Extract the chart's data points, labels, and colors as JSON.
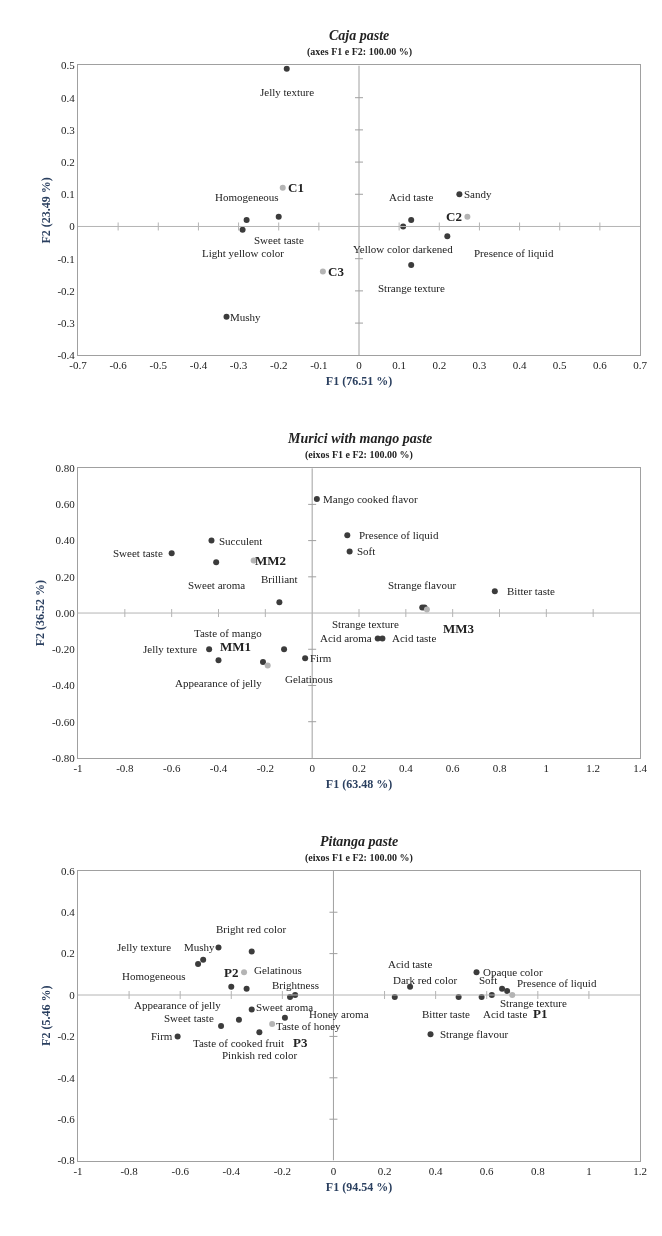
{
  "chart_data": [
    {
      "type": "scatter",
      "title": "Caja paste",
      "subtitle": "(axes F1 e F2: 100.00 %)",
      "xlabel": "F1 (76.51 %)",
      "ylabel": "F2 (23.49 %)",
      "marker": "circle",
      "grid": false,
      "xlim": [
        -0.7,
        0.7
      ],
      "ylim": [
        -0.4,
        0.5
      ],
      "ref_lines": [
        {
          "axis": "x",
          "value": 0,
          "color": "#a0a0a0"
        },
        {
          "axis": "y",
          "value": 0,
          "color": "#b4b4b4"
        }
      ],
      "xticks": [
        -0.7,
        -0.6,
        -0.5,
        -0.4,
        -0.3,
        -0.2,
        -0.1,
        0,
        0.1,
        0.2,
        0.3,
        0.4,
        0.5,
        0.6,
        0.7
      ],
      "yticks": [
        -0.4,
        -0.3,
        -0.2,
        -0.1,
        0,
        0.1,
        0.2,
        0.3,
        0.4,
        0.5
      ],
      "series": [
        {
          "color": "#3c3c3c",
          "x": [
            -0.18,
            -0.2,
            -0.28,
            -0.29,
            -0.33,
            0.13,
            0.11,
            0.25,
            0.22,
            0.13
          ],
          "values": [
            0.49,
            0.03,
            0.02,
            -0.01,
            -0.28,
            0.02,
            0.0,
            0.1,
            -0.03,
            -0.12
          ]
        },
        {
          "color": "#b4b4b4",
          "x": [
            -0.19,
            0.27,
            -0.09
          ],
          "values": [
            0.12,
            0.03,
            -0.14
          ]
        }
      ],
      "annotations": [
        {
          "text": "Jelly texture",
          "x": -0.18,
          "y": 0.49
        },
        {
          "text": "Sweet taste",
          "x": -0.2,
          "y": 0.03
        },
        {
          "text": "Homogeneous",
          "x": -0.28,
          "y": 0.02
        },
        {
          "text": "Light yellow color",
          "x": -0.29,
          "y": -0.01
        },
        {
          "text": "Mushy",
          "x": -0.33,
          "y": -0.28
        },
        {
          "text": "Acid taste",
          "x": 0.13,
          "y": 0.02
        },
        {
          "text": "Yellow color darkened",
          "x": 0.11,
          "y": 0.0
        },
        {
          "text": "Sandy",
          "x": 0.25,
          "y": 0.1
        },
        {
          "text": "Presence of liquid",
          "x": 0.22,
          "y": -0.03
        },
        {
          "text": "Strange texture",
          "x": 0.13,
          "y": -0.12
        },
        {
          "text": "C1",
          "x": -0.19,
          "y": 0.12
        },
        {
          "text": "C2",
          "x": 0.27,
          "y": 0.03
        },
        {
          "text": "C3",
          "x": -0.09,
          "y": -0.14
        }
      ]
    },
    {
      "type": "scatter",
      "title": "Murici with mango paste",
      "subtitle": "(eixos F1 e F2: 100.00 %)",
      "xlabel": "F1 (63.48 %)",
      "ylabel": "F2 (36.52 %)",
      "marker": "circle",
      "grid": false,
      "xlim": [
        -1,
        1.4
      ],
      "ylim": [
        -0.8,
        0.8
      ],
      "ref_lines": [
        {
          "axis": "x",
          "value": 0,
          "color": "#a0a0a0"
        },
        {
          "axis": "y",
          "value": 0,
          "color": "#b4b4b4"
        }
      ],
      "xticks": [
        -1,
        -0.8,
        -0.6,
        -0.4,
        -0.2,
        0,
        0.2,
        0.4,
        0.6,
        0.8,
        1,
        1.2,
        1.4
      ],
      "yticks": [
        {
          "value": -0.8,
          "label": "-0.80"
        },
        {
          "value": -0.6,
          "label": "-0.60"
        },
        {
          "value": -0.4,
          "label": "-0.40"
        },
        {
          "value": -0.2,
          "label": "-0.20"
        },
        {
          "value": 0,
          "label": "0.00"
        },
        {
          "value": 0.2,
          "label": "0.20"
        },
        {
          "value": 0.4,
          "label": "0.40"
        },
        {
          "value": 0.6,
          "label": "0.60"
        },
        {
          "value": 0.8,
          "label": "0.80"
        }
      ],
      "series": [
        {
          "color": "#3c3c3c",
          "x": [
            0.02,
            0.15,
            0.16,
            -0.43,
            -0.6,
            -0.41,
            -0.14,
            0.78,
            0.47,
            0.48,
            0.3,
            0.28,
            -0.44,
            -0.4,
            -0.12,
            -0.21,
            -0.03
          ],
          "values": [
            0.63,
            0.43,
            0.34,
            0.4,
            0.33,
            0.28,
            0.06,
            0.12,
            0.03,
            0.03,
            -0.14,
            -0.14,
            -0.2,
            -0.26,
            -0.2,
            -0.27,
            -0.25
          ]
        },
        {
          "color": "#b4b4b4",
          "x": [
            -0.19,
            -0.25,
            0.49
          ],
          "values": [
            -0.29,
            0.29,
            0.02
          ]
        }
      ],
      "annotations": [
        {
          "text": "Mango cooked flavor",
          "x": 0.02,
          "y": 0.63
        },
        {
          "text": "Presence of liquid",
          "x": 0.15,
          "y": 0.43
        },
        {
          "text": "Soft",
          "x": 0.16,
          "y": 0.34
        },
        {
          "text": "Succulent",
          "x": -0.43,
          "y": 0.4
        },
        {
          "text": "Sweet taste",
          "x": -0.6,
          "y": 0.33
        },
        {
          "text": "Sweet aroma",
          "x": -0.41,
          "y": 0.28
        },
        {
          "text": "Brilliant",
          "x": -0.14,
          "y": 0.06
        },
        {
          "text": "Bitter taste",
          "x": 0.78,
          "y": 0.12
        },
        {
          "text": "Strange flavour",
          "x": 0.47,
          "y": 0.03
        },
        {
          "text": "Strange texture",
          "x": 0.48,
          "y": 0.03
        },
        {
          "text": "Acid taste",
          "x": 0.3,
          "y": -0.14
        },
        {
          "text": "Acid aroma",
          "x": 0.28,
          "y": -0.14
        },
        {
          "text": "Jelly texture",
          "x": -0.44,
          "y": -0.2
        },
        {
          "text": "Appearance of jelly",
          "x": -0.4,
          "y": -0.26
        },
        {
          "text": "Taste of mango",
          "x": -0.12,
          "y": -0.2
        },
        {
          "text": "Gelatinous",
          "x": -0.21,
          "y": -0.27
        },
        {
          "text": "Firm",
          "x": -0.03,
          "y": -0.25
        },
        {
          "text": "MM1",
          "x": -0.19,
          "y": -0.29
        },
        {
          "text": "MM2",
          "x": -0.25,
          "y": 0.29
        },
        {
          "text": "MM3",
          "x": 0.49,
          "y": 0.02
        }
      ]
    },
    {
      "type": "scatter",
      "title": "Pitanga paste",
      "subtitle": "(eixos F1 e F2: 100.00 %)",
      "xlabel": "F1 (94.54 %)",
      "ylabel": "F2 (5.46 %)",
      "marker": "circle",
      "grid": false,
      "xlim": [
        -1,
        1.2
      ],
      "ylim": [
        -0.8,
        0.6
      ],
      "ref_lines": [
        {
          "axis": "x",
          "value": 0,
          "color": "#a0a0a0"
        },
        {
          "axis": "y",
          "value": 0,
          "color": "#b4b4b4"
        }
      ],
      "xticks": [
        -1,
        -0.8,
        -0.6,
        -0.4,
        -0.2,
        0,
        0.2,
        0.4,
        0.6,
        0.8,
        1,
        1.2
      ],
      "yticks": [
        -0.8,
        -0.6,
        -0.4,
        -0.2,
        0,
        0.2,
        0.4,
        0.6
      ],
      "series": [
        {
          "color": "#3c3c3c",
          "x": [
            -0.45,
            -0.32,
            -0.51,
            -0.53,
            -0.4,
            -0.34,
            -0.15,
            -0.17,
            -0.32,
            -0.37,
            -0.44,
            -0.61,
            -0.29,
            -0.19,
            0.3,
            0.24,
            0.56,
            0.49,
            0.58,
            0.62,
            0.66,
            0.68,
            0.38
          ],
          "values": [
            0.23,
            0.21,
            0.17,
            0.15,
            0.04,
            0.03,
            0.0,
            -0.01,
            -0.07,
            -0.12,
            -0.15,
            -0.2,
            -0.18,
            -0.11,
            0.04,
            -0.01,
            0.11,
            -0.01,
            -0.01,
            0.0,
            0.03,
            0.02,
            -0.19
          ]
        },
        {
          "color": "#b4b4b4",
          "x": [
            0.7,
            -0.35,
            -0.24
          ],
          "values": [
            0.0,
            0.11,
            -0.14
          ]
        }
      ],
      "annotations": [
        {
          "text": "Mushy",
          "x": -0.45,
          "y": 0.23
        },
        {
          "text": "Bright red color",
          "x": -0.32,
          "y": 0.21
        },
        {
          "text": "Homogeneous",
          "x": -0.51,
          "y": 0.17
        },
        {
          "text": "Jelly texture",
          "x": -0.53,
          "y": 0.15
        },
        {
          "text": "Gelatinous",
          "x": -0.4,
          "y": 0.04
        },
        {
          "text": "Appearance of jelly",
          "x": -0.34,
          "y": 0.03
        },
        {
          "text": "Brightness",
          "x": -0.15,
          "y": 0.0
        },
        {
          "text": "Honey aroma",
          "x": -0.17,
          "y": -0.01
        },
        {
          "text": "Taste of honey",
          "x": -0.32,
          "y": -0.07
        },
        {
          "text": "Taste of cooked fruit",
          "x": -0.37,
          "y": -0.12
        },
        {
          "text": "Sweet taste",
          "x": -0.44,
          "y": -0.15
        },
        {
          "text": "Firm",
          "x": -0.61,
          "y": -0.2
        },
        {
          "text": "Pinkish red color",
          "x": -0.29,
          "y": -0.18
        },
        {
          "text": "Sweet aroma",
          "x": -0.19,
          "y": -0.11
        },
        {
          "text": "Acid taste",
          "x": 0.3,
          "y": 0.04
        },
        {
          "text": "Bitter taste",
          "x": 0.24,
          "y": -0.01
        },
        {
          "text": "Opaque color",
          "x": 0.56,
          "y": 0.11
        },
        {
          "text": "Acid taste",
          "x": 0.49,
          "y": -0.01
        },
        {
          "text": "Dark red color",
          "x": 0.58,
          "y": -0.01
        },
        {
          "text": "Strange texture",
          "x": 0.62,
          "y": 0.0
        },
        {
          "text": "Soft",
          "x": 0.66,
          "y": 0.03
        },
        {
          "text": "Presence of liquid",
          "x": 0.68,
          "y": 0.02
        },
        {
          "text": "Strange flavour",
          "x": 0.38,
          "y": -0.19
        },
        {
          "text": "P1",
          "x": 0.7,
          "y": 0.0
        },
        {
          "text": "P2",
          "x": -0.35,
          "y": 0.11
        },
        {
          "text": "P3",
          "x": -0.24,
          "y": -0.14
        }
      ]
    }
  ]
}
